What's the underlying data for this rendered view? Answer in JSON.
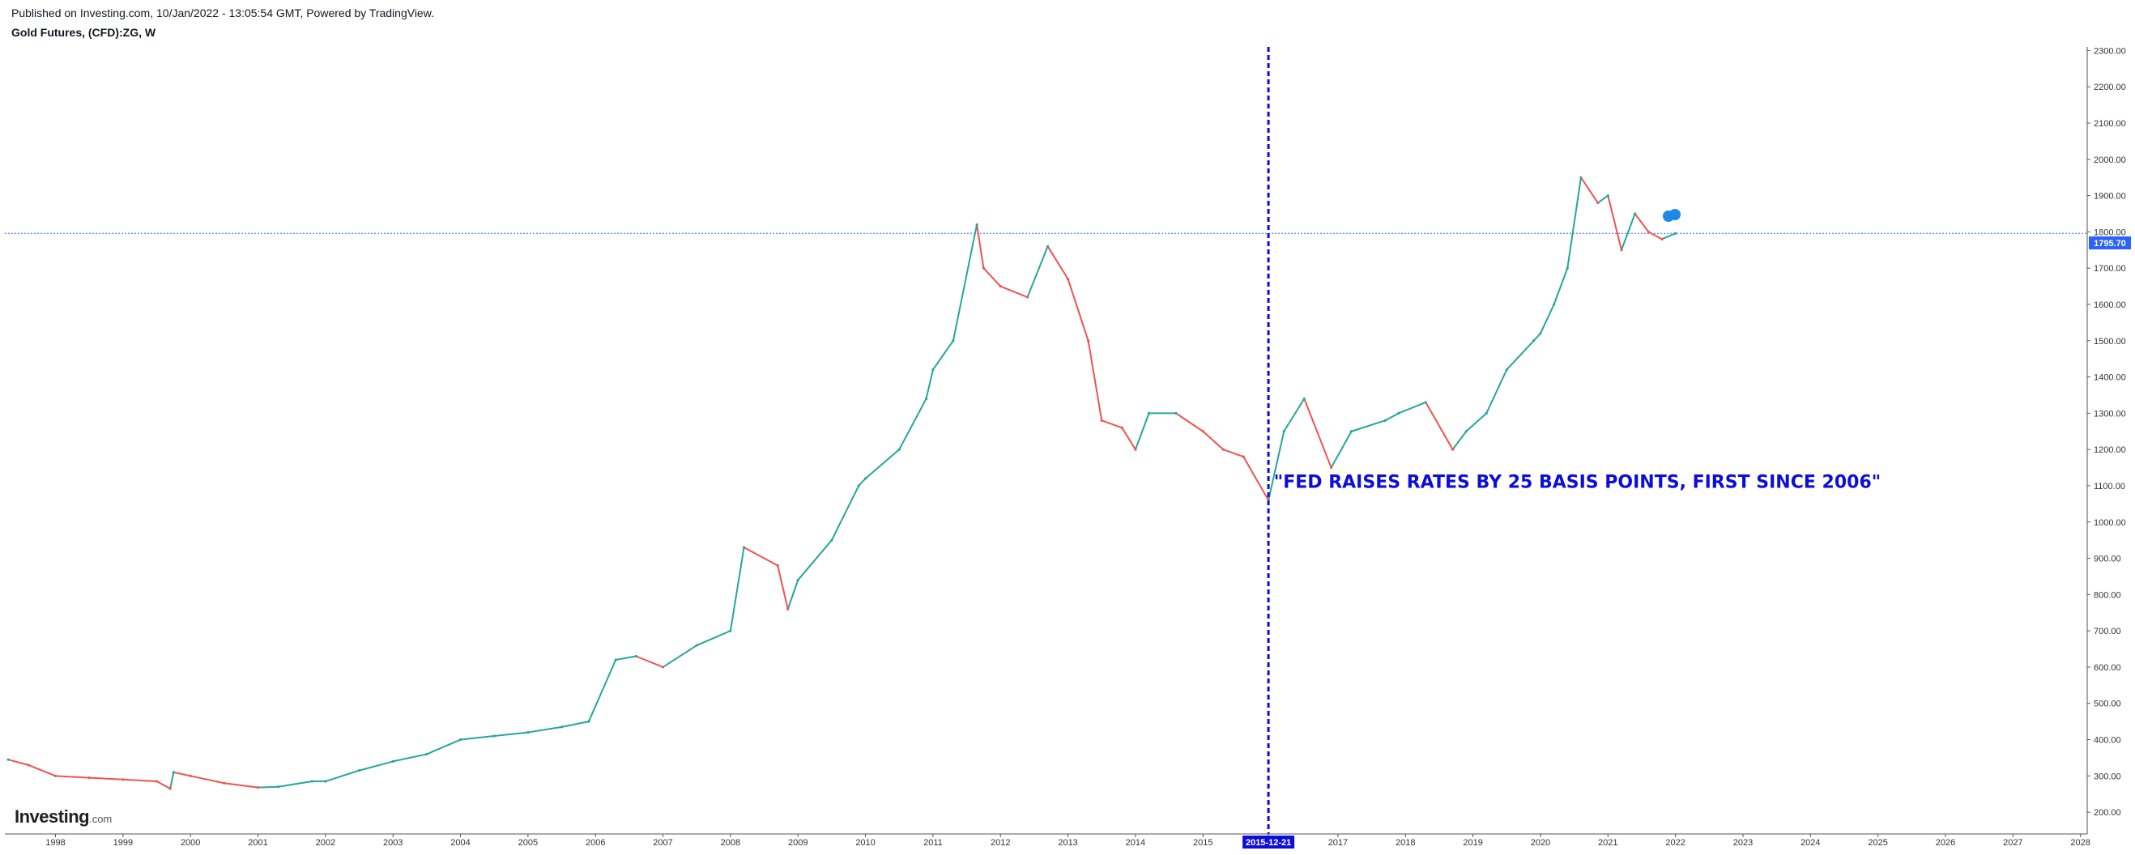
{
  "header": {
    "published": "Published on Investing.com, 10/Jan/2022 - 13:05:54 GMT, Powered by TradingView.",
    "symbol": "Gold Futures, (CFD):ZG, W"
  },
  "logo": {
    "main": "Investing",
    "sub": ".com"
  },
  "colors": {
    "up": "#26a69a",
    "down": "#ef5350",
    "line": "#2962ff",
    "annot": "#0d0dd8",
    "price_label_bg": "#2962ff"
  },
  "chart_data": {
    "type": "line",
    "title": "Gold Futures, (CFD):ZG, W",
    "xlabel": "",
    "ylabel": "",
    "x_ticks": [
      "1998",
      "1999",
      "2000",
      "2001",
      "2002",
      "2003",
      "2004",
      "2005",
      "2006",
      "2007",
      "2008",
      "2009",
      "2010",
      "2011",
      "2012",
      "2013",
      "2014",
      "2015",
      "2015-12-21",
      "2017",
      "2018",
      "2019",
      "2020",
      "2021",
      "2022",
      "2023",
      "2024",
      "2025",
      "2026",
      "2027",
      "2028"
    ],
    "y_ticks": [
      "200.00",
      "300.00",
      "400.00",
      "500.00",
      "600.00",
      "700.00",
      "800.00",
      "900.00",
      "1000.00",
      "1100.00",
      "1200.00",
      "1300.00",
      "1400.00",
      "1500.00",
      "1600.00",
      "1700.00",
      "1800.00",
      "1900.00",
      "2000.00",
      "2100.00",
      "2200.00",
      "2300.00"
    ],
    "ylim": [
      140,
      2350
    ],
    "xlim": [
      1997.25,
      2028.1
    ],
    "grid": false,
    "current_price": {
      "value": 1795.7,
      "label": "1795.70"
    },
    "event_line": {
      "x": 2015.97,
      "label": "2015-12-21"
    },
    "annotation": {
      "text": "\"FED RAISES RATES BY 25 BASIS POINTS, FIRST SINCE 2006\"",
      "x": 2016.05,
      "y": 1090
    },
    "series": [
      {
        "name": "",
        "x": [
          1997.3,
          1997.6,
          1998.0,
          1998.5,
          1999.0,
          1999.5,
          1999.7,
          1999.75,
          2000.0,
          2000.5,
          2001.0,
          2001.3,
          2001.8,
          2002.0,
          2002.5,
          2003.0,
          2003.5,
          2004.0,
          2004.5,
          2005.0,
          2005.5,
          2005.9,
          2006.3,
          2006.6,
          2007.0,
          2007.5,
          2008.0,
          2008.2,
          2008.7,
          2008.85,
          2009.0,
          2009.5,
          2009.9,
          2010.0,
          2010.5,
          2010.9,
          2011.0,
          2011.3,
          2011.65,
          2011.75,
          2012.0,
          2012.4,
          2012.7,
          2013.0,
          2013.3,
          2013.5,
          2013.8,
          2014.0,
          2014.2,
          2014.6,
          2015.0,
          2015.3,
          2015.6,
          2015.97,
          2016.2,
          2016.5,
          2016.9,
          2017.2,
          2017.7,
          2017.9,
          2018.3,
          2018.7,
          2018.9,
          2019.2,
          2019.5,
          2019.9,
          2020.0,
          2020.2,
          2020.4,
          2020.6,
          2020.85,
          2021.0,
          2021.2,
          2021.4,
          2021.6,
          2021.8,
          2022.0
        ],
        "values": [
          345,
          330,
          300,
          295,
          290,
          285,
          265,
          310,
          300,
          280,
          268,
          270,
          285,
          285,
          315,
          340,
          360,
          400,
          410,
          420,
          435,
          450,
          620,
          630,
          600,
          660,
          700,
          930,
          880,
          760,
          840,
          950,
          1100,
          1120,
          1200,
          1340,
          1420,
          1500,
          1820,
          1700,
          1650,
          1620,
          1760,
          1670,
          1500,
          1280,
          1260,
          1200,
          1300,
          1300,
          1250,
          1200,
          1180,
          1060,
          1250,
          1340,
          1150,
          1250,
          1280,
          1300,
          1330,
          1200,
          1250,
          1300,
          1420,
          1500,
          1520,
          1600,
          1700,
          1950,
          1880,
          1900,
          1750,
          1850,
          1800,
          1780,
          1795.7
        ]
      }
    ]
  }
}
